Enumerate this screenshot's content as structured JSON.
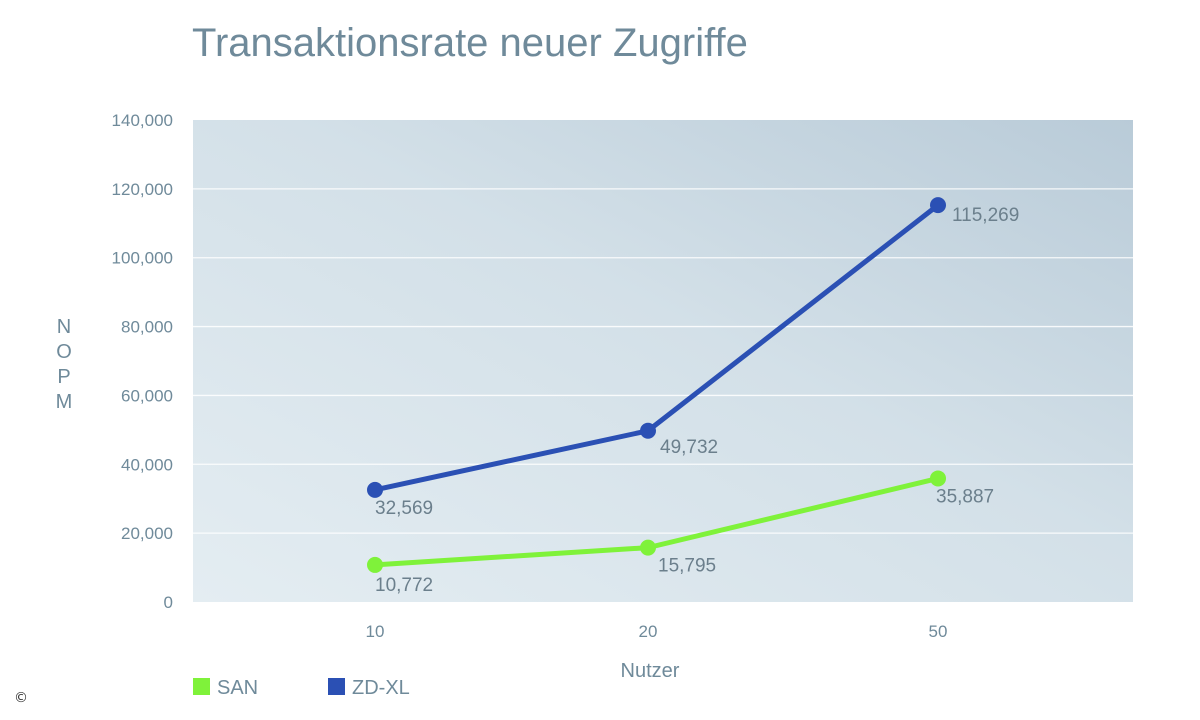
{
  "chart_data": {
    "type": "line",
    "title": "Transaktionsrate neuer Zugriffe",
    "xlabel": "Nutzer",
    "ylabel": "NOPM",
    "categories": [
      "10",
      "20",
      "50"
    ],
    "ylim": [
      0,
      140000
    ],
    "yticks": [
      0,
      20000,
      40000,
      60000,
      80000,
      100000,
      120000,
      140000
    ],
    "ytick_labels": [
      "0",
      "20,000",
      "40,000",
      "60,000",
      "80,000",
      "100,000",
      "120,000",
      "140,000"
    ],
    "grid": true,
    "legend_position": "bottom-left",
    "series": [
      {
        "name": "SAN",
        "color": "#7ff23a",
        "values": [
          10772,
          15795,
          35887
        ],
        "labels": [
          "10,772",
          "15,795",
          "35,887"
        ]
      },
      {
        "name": "ZD-XL",
        "color": "#2b50b4",
        "values": [
          32569,
          49732,
          115269
        ],
        "labels": [
          "32,569",
          "49,732",
          "115,269"
        ]
      }
    ]
  },
  "footer": {
    "copyright_symbol": "©"
  }
}
